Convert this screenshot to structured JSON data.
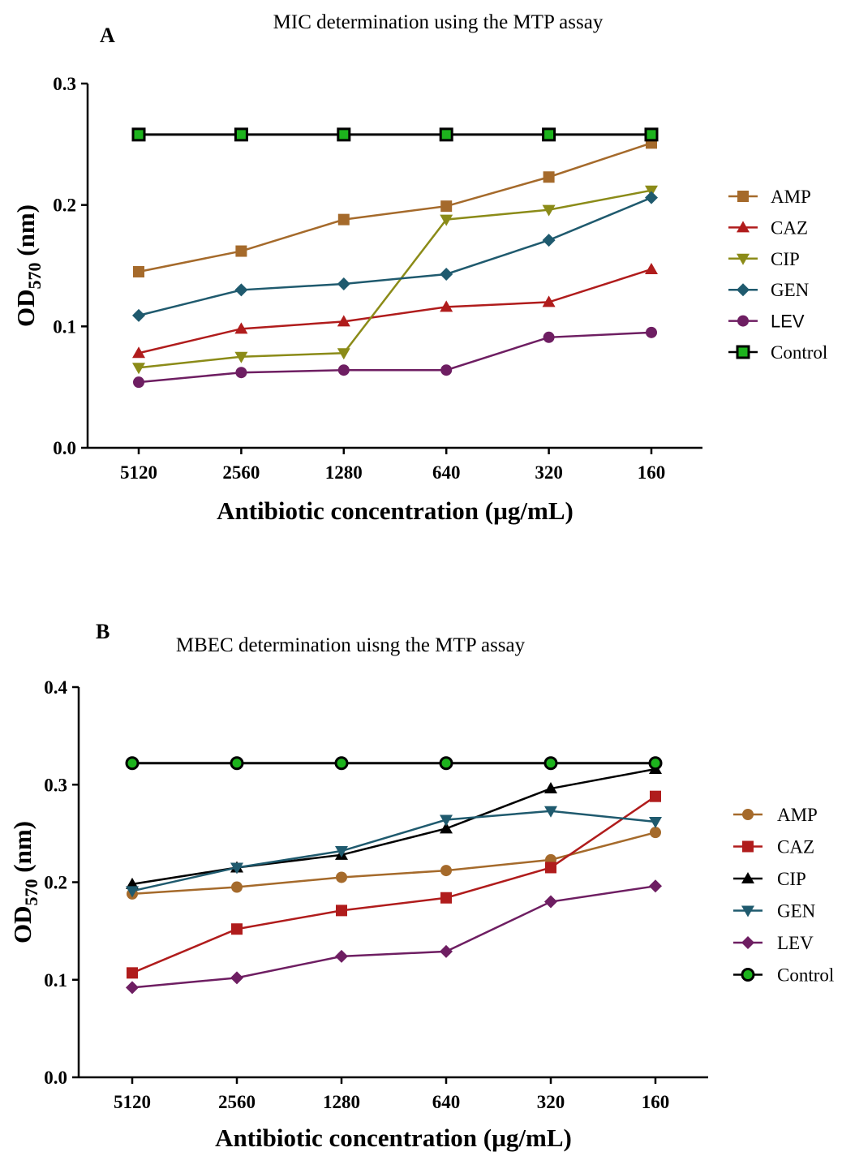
{
  "chart_data": [
    {
      "type": "line",
      "panel": "A",
      "title": "MIC determination using the MTP assay",
      "xlabel": "Antibiotic concentration (µg/mL)",
      "ylabel_main": "OD",
      "ylabel_sub": "570",
      "ylabel_unit": " (nm)",
      "categories": [
        "5120",
        "2560",
        "1280",
        "640",
        "320",
        "160"
      ],
      "ylim": [
        0,
        0.3
      ],
      "yticks": [
        "0.0",
        "0.1",
        "0.2",
        "0.3"
      ],
      "ytick_values": [
        0,
        0.1,
        0.2,
        0.3
      ],
      "legend_position": "right",
      "series": [
        {
          "name": "AMP",
          "color": "#a56a2b",
          "marker": "square",
          "values": [
            0.145,
            0.162,
            0.188,
            0.199,
            0.223,
            0.251
          ]
        },
        {
          "name": "CAZ",
          "color": "#b01c1c",
          "marker": "triangle-up",
          "values": [
            0.078,
            0.098,
            0.104,
            0.116,
            0.12,
            0.147
          ]
        },
        {
          "name": "CIP",
          "color": "#8b8b18",
          "marker": "triangle-down",
          "values": [
            0.066,
            0.075,
            0.078,
            0.188,
            0.196,
            0.212
          ]
        },
        {
          "name": "GEN",
          "color": "#1f5a6e",
          "marker": "diamond",
          "values": [
            0.109,
            0.13,
            0.135,
            0.143,
            0.171,
            0.206
          ]
        },
        {
          "name": "LEV",
          "color": "#6e1e62",
          "marker": "circle",
          "values": [
            0.054,
            0.062,
            0.064,
            0.064,
            0.091,
            0.095
          ]
        },
        {
          "name": "Control",
          "color": "#000000",
          "marker": "square-green",
          "values": [
            0.258,
            0.258,
            0.258,
            0.258,
            0.258,
            0.258
          ]
        }
      ]
    },
    {
      "type": "line",
      "panel": "B",
      "title": "MBEC determination uisng the MTP assay",
      "xlabel": "Antibiotic concentration (µg/mL)",
      "ylabel_main": "OD",
      "ylabel_sub": "570",
      "ylabel_unit": " (nm)",
      "categories": [
        "5120",
        "2560",
        "1280",
        "640",
        "320",
        "160"
      ],
      "ylim": [
        0,
        0.4
      ],
      "yticks": [
        "0.0",
        "0.1",
        "0.2",
        "0.3",
        "0.4"
      ],
      "ytick_values": [
        0,
        0.1,
        0.2,
        0.3,
        0.4
      ],
      "legend_position": "right",
      "series": [
        {
          "name": "AMP",
          "color": "#a56a2b",
          "marker": "circle",
          "values": [
            0.188,
            0.195,
            0.205,
            0.212,
            0.223,
            0.251
          ]
        },
        {
          "name": "CAZ",
          "color": "#b01c1c",
          "marker": "square",
          "values": [
            0.107,
            0.152,
            0.171,
            0.184,
            0.215,
            0.288
          ]
        },
        {
          "name": "CIP",
          "color": "#000000",
          "marker": "triangle-up",
          "values": [
            0.198,
            0.215,
            0.228,
            0.255,
            0.296,
            0.316
          ]
        },
        {
          "name": "GEN",
          "color": "#1f5a6e",
          "marker": "triangle-down",
          "values": [
            0.191,
            0.215,
            0.232,
            0.264,
            0.273,
            0.262
          ]
        },
        {
          "name": "LEV",
          "color": "#6e1e62",
          "marker": "diamond",
          "values": [
            0.092,
            0.102,
            0.124,
            0.129,
            0.18,
            0.196
          ]
        },
        {
          "name": "Control",
          "color": "#000000",
          "marker": "circle-green",
          "values": [
            0.322,
            0.322,
            0.322,
            0.322,
            0.322,
            0.322
          ]
        }
      ]
    }
  ]
}
